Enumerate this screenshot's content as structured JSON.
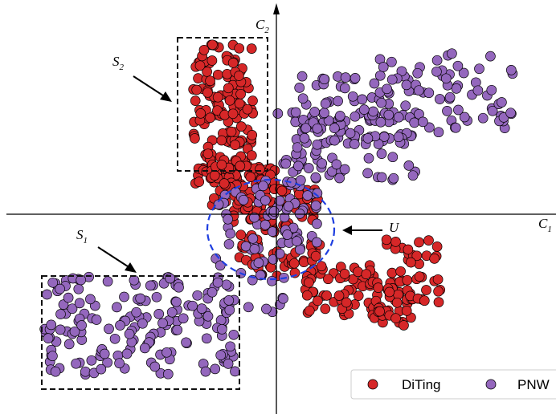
{
  "chart_data": {
    "type": "scatter",
    "axis_labels": {
      "x": "C",
      "x_sub": "1",
      "y": "C",
      "y_sub": "2"
    },
    "annotations": [
      {
        "id": "S1",
        "text": "S",
        "sub": "1"
      },
      {
        "id": "S2",
        "text": "S",
        "sub": "2"
      },
      {
        "id": "U",
        "text": "U"
      }
    ],
    "legend": {
      "placement": "bottom-right"
    },
    "grid": false,
    "series": [
      {
        "name": "DiTing",
        "color": "#d62728",
        "clusters": [
          {
            "x": [
              240,
              315
            ],
            "y": [
              55,
              230
            ],
            "n": 170
          },
          {
            "x": [
              262,
              345
            ],
            "y": [
              205,
              265
            ],
            "n": 70
          },
          {
            "x": [
              290,
              400
            ],
            "y": [
              235,
              345
            ],
            "n": 90
          },
          {
            "x": [
              380,
              470
            ],
            "y": [
              330,
              395
            ],
            "n": 55
          },
          {
            "x": [
              460,
              515
            ],
            "y": [
              350,
              408
            ],
            "n": 45
          },
          {
            "x": [
              480,
              548
            ],
            "y": [
              295,
              380
            ],
            "n": 40
          }
        ]
      },
      {
        "name": "PNW",
        "color": "#9467bd",
        "clusters": [
          {
            "x": [
              55,
              300
            ],
            "y": [
              345,
              470
            ],
            "n": 170
          },
          {
            "x": [
              255,
              355
            ],
            "y": [
              320,
              390
            ],
            "n": 25
          },
          {
            "x": [
              270,
              395
            ],
            "y": [
              225,
              320
            ],
            "n": 70
          },
          {
            "x": [
              345,
              520
            ],
            "y": [
              140,
              225
            ],
            "n": 95
          },
          {
            "x": [
              365,
              470
            ],
            "y": [
              95,
              185
            ],
            "n": 55
          },
          {
            "x": [
              470,
              640
            ],
            "y": [
              65,
              165
            ],
            "n": 80
          }
        ]
      }
    ]
  }
}
